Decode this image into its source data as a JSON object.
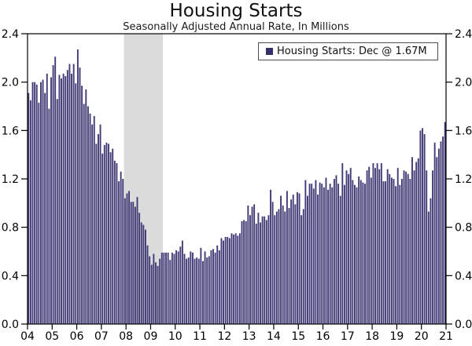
{
  "title": "Housing Starts",
  "subtitle": "Seasonally Adjusted Annual Rate, In Millions",
  "legend": {
    "label": "Housing Starts: Dec @ 1.67M",
    "position": "top-right"
  },
  "colors": {
    "bar": "#403b76",
    "legend_marker": "#343069",
    "recession_band": "#dbdbdb",
    "axis": "#000000",
    "background": "#ffffff"
  },
  "chart_data": {
    "type": "bar",
    "title": "Housing Starts",
    "subtitle": "Seasonally Adjusted Annual Rate, In Millions",
    "xlabel": "",
    "ylabel": "",
    "ylim": [
      0.0,
      2.4
    ],
    "y_ticks": [
      0.0,
      0.4,
      0.8,
      1.2,
      1.6,
      2.0,
      2.4
    ],
    "y_tick_format": "one-decimal",
    "y_axis_sides": "both",
    "grid": false,
    "x_start": "2004-01",
    "x_frequency": "monthly",
    "x_tick_labels": [
      "04",
      "05",
      "06",
      "07",
      "08",
      "09",
      "10",
      "11",
      "12",
      "13",
      "14",
      "15",
      "16",
      "17",
      "18",
      "19",
      "20",
      "21"
    ],
    "recession_band": {
      "start": "2007-12",
      "end": "2009-06"
    },
    "legend_position": "top-right",
    "series": [
      {
        "name": "Housing Starts",
        "values": [
          1.91,
          1.85,
          2.0,
          2.0,
          1.98,
          1.83,
          2.0,
          2.02,
          1.91,
          2.07,
          1.78,
          2.04,
          2.14,
          2.21,
          1.86,
          2.06,
          2.03,
          2.07,
          2.05,
          2.1,
          2.15,
          2.07,
          2.15,
          1.99,
          2.27,
          2.12,
          1.97,
          1.82,
          1.94,
          1.8,
          1.74,
          1.65,
          1.72,
          1.49,
          1.57,
          1.65,
          1.41,
          1.48,
          1.5,
          1.49,
          1.42,
          1.45,
          1.35,
          1.33,
          1.18,
          1.26,
          1.2,
          1.04,
          1.08,
          1.1,
          1.01,
          1.01,
          0.97,
          1.05,
          0.92,
          0.84,
          0.82,
          0.78,
          0.65,
          0.56,
          0.49,
          0.58,
          0.51,
          0.48,
          0.54,
          0.59,
          0.59,
          0.59,
          0.59,
          0.53,
          0.59,
          0.58,
          0.61,
          0.6,
          0.64,
          0.69,
          0.58,
          0.54,
          0.55,
          0.6,
          0.59,
          0.54,
          0.55,
          0.54,
          0.63,
          0.52,
          0.6,
          0.55,
          0.56,
          0.61,
          0.62,
          0.59,
          0.65,
          0.61,
          0.71,
          0.69,
          0.72,
          0.72,
          0.71,
          0.75,
          0.74,
          0.75,
          0.73,
          0.75,
          0.85,
          0.86,
          0.85,
          0.98,
          0.9,
          0.97,
          0.99,
          0.83,
          0.92,
          0.84,
          0.89,
          0.89,
          0.86,
          0.9,
          1.11,
          1.01,
          0.9,
          0.93,
          0.95,
          1.06,
          0.98,
          0.93,
          1.1,
          0.96,
          1.03,
          1.07,
          0.99,
          1.09,
          1.08,
          0.9,
          0.95,
          1.19,
          1.06,
          1.16,
          1.16,
          1.12,
          1.19,
          1.07,
          1.17,
          1.16,
          1.13,
          1.21,
          1.11,
          1.16,
          1.13,
          1.2,
          1.23,
          1.16,
          1.06,
          1.33,
          1.15,
          1.27,
          1.24,
          1.29,
          1.19,
          1.15,
          1.13,
          1.22,
          1.19,
          1.17,
          1.16,
          1.27,
          1.3,
          1.21,
          1.33,
          1.29,
          1.33,
          1.28,
          1.33,
          1.18,
          1.18,
          1.28,
          1.24,
          1.21,
          1.2,
          1.14,
          1.29,
          1.15,
          1.2,
          1.27,
          1.26,
          1.24,
          1.2,
          1.38,
          1.27,
          1.34,
          1.37,
          1.6,
          1.62,
          1.57,
          1.27,
          0.93,
          1.04,
          1.27,
          1.5,
          1.38,
          1.45,
          1.51,
          1.55,
          1.67
        ]
      }
    ]
  }
}
